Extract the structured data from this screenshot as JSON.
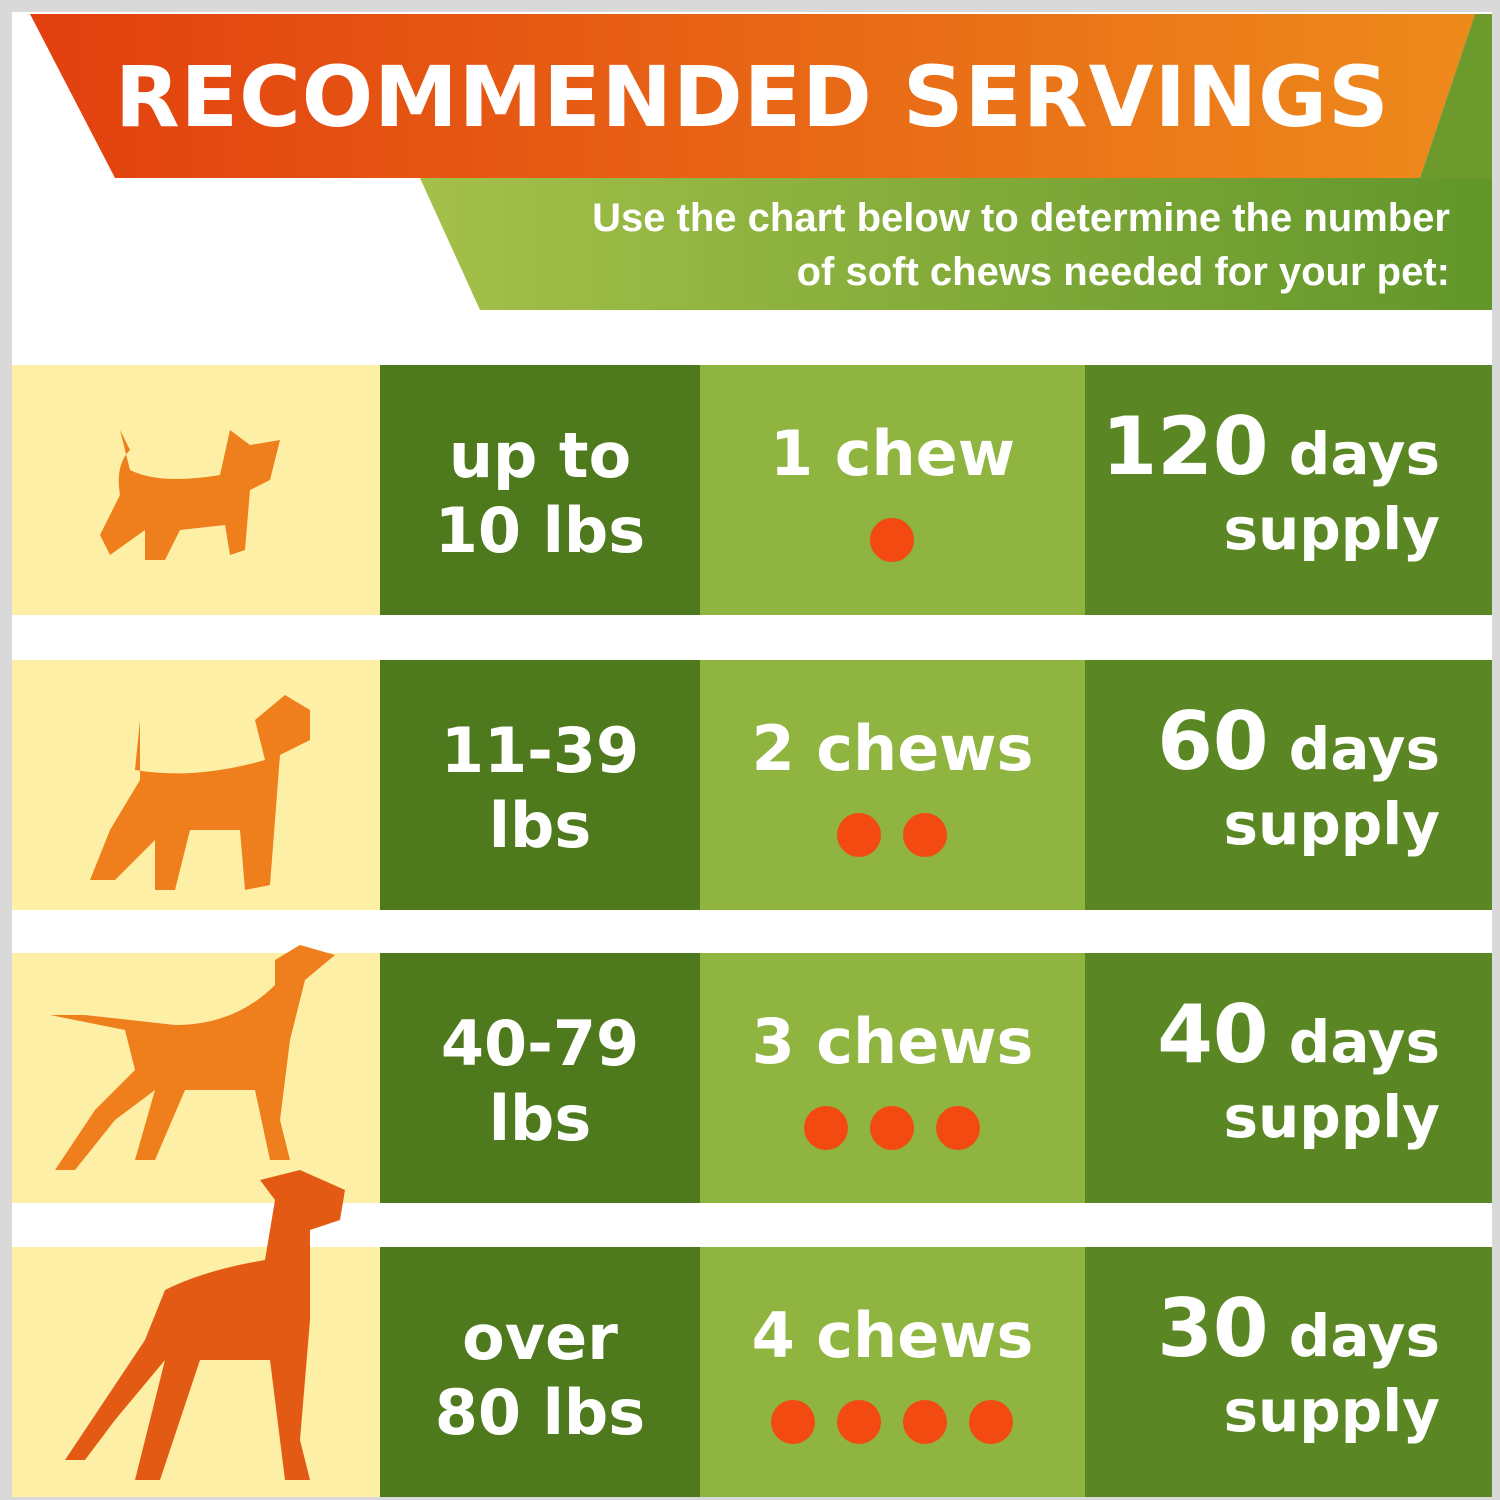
{
  "header": {
    "title": "RECOMMENDED SERVINGS",
    "subtitle": [
      "Use the chart below to determine the number",
      "of soft chews needed for your pet:"
    ]
  },
  "rows": [
    {
      "weight": [
        "up to",
        "10 lbs"
      ],
      "dose": {
        "count": 1,
        "unit": "chew"
      },
      "supply": {
        "days": 120,
        "unit": "days",
        "note": "supply"
      }
    },
    {
      "weight": [
        "11-39",
        "lbs"
      ],
      "dose": {
        "count": 2,
        "unit": "chews"
      },
      "supply": {
        "days": 60,
        "unit": "days",
        "note": "supply"
      }
    },
    {
      "weight": [
        "40-79",
        "lbs"
      ],
      "dose": {
        "count": 3,
        "unit": "chews"
      },
      "supply": {
        "days": 40,
        "unit": "days",
        "note": "supply"
      }
    },
    {
      "weight": [
        "over",
        "80 lbs"
      ],
      "dose": {
        "count": 4,
        "unit": "chews"
      },
      "supply": {
        "days": 30,
        "unit": "days",
        "note": "supply"
      }
    }
  ]
}
